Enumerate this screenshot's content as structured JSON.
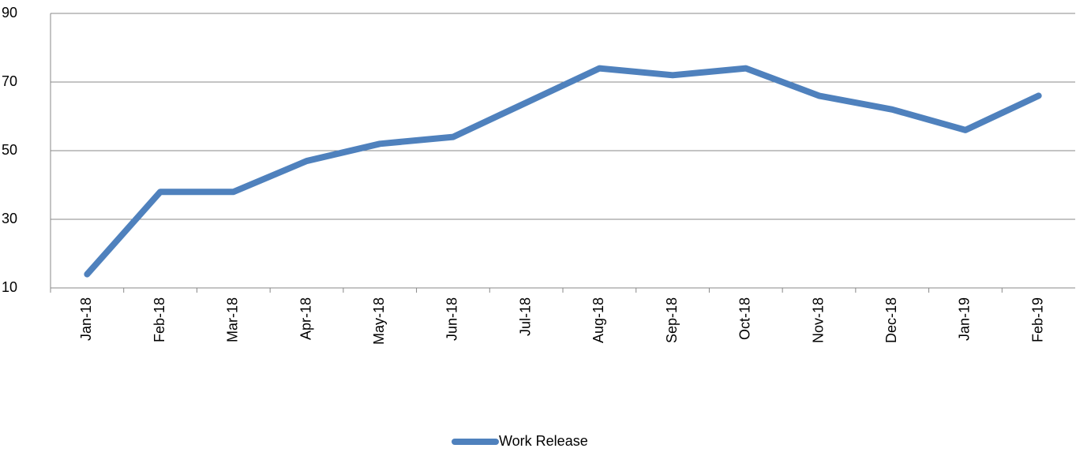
{
  "chart_data": {
    "type": "line",
    "categories": [
      "Jan-18",
      "Feb-18",
      "Mar-18",
      "Apr-18",
      "May-18",
      "Jun-18",
      "Jul-18",
      "Aug-18",
      "Sep-18",
      "Oct-18",
      "Nov-18",
      "Dec-18",
      "Jan-19",
      "Feb-19"
    ],
    "series": [
      {
        "name": "Work Release",
        "color": "#4f81bd",
        "values": [
          14,
          38,
          38,
          47,
          52,
          54,
          64,
          74,
          72,
          74,
          66,
          62,
          56,
          66
        ]
      }
    ],
    "ylim": [
      10,
      90
    ],
    "yticks": [
      10,
      30,
      50,
      70,
      90
    ],
    "grid": true,
    "legend": "bottom"
  }
}
